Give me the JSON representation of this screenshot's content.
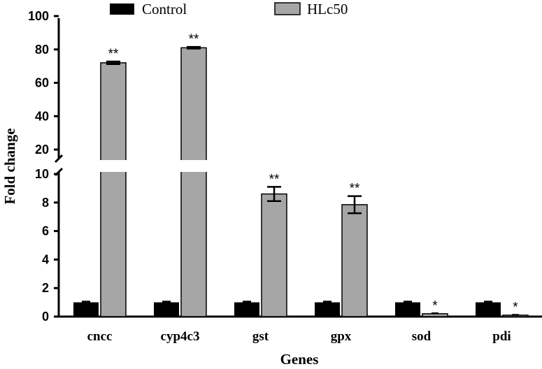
{
  "chart_data": {
    "type": "bar",
    "title": "",
    "xlabel": "Genes",
    "ylabel": "Fold change",
    "categories": [
      "cncc",
      "cyp4c3",
      "gst",
      "gpx",
      "sod",
      "pdi"
    ],
    "series": [
      {
        "name": "Control",
        "color": "#000000",
        "values": [
          1.0,
          1.0,
          1.0,
          1.0,
          1.0,
          1.0
        ],
        "errors": [
          0.05,
          0.05,
          0.05,
          0.05,
          0.05,
          0.05
        ]
      },
      {
        "name": "HLc50",
        "color": "#a6a6a6",
        "values": [
          72.0,
          81.0,
          8.6,
          7.85,
          0.2,
          0.1
        ],
        "errors": [
          0.8,
          0.5,
          0.5,
          0.6,
          0.03,
          0.02
        ],
        "significance": [
          "**",
          "**",
          "**",
          "**",
          "*",
          "*"
        ]
      }
    ],
    "y_axis_broken": true,
    "y_lower_segment": {
      "range": [
        0,
        10
      ],
      "ticks": [
        "0",
        "2",
        "4",
        "6",
        "8",
        "10"
      ]
    },
    "y_upper_segment": {
      "range": [
        20,
        100
      ],
      "ticks": [
        "20",
        "40",
        "60",
        "80",
        "100"
      ]
    },
    "legend": [
      "Control",
      "HLc50"
    ],
    "legend_position": "top"
  }
}
